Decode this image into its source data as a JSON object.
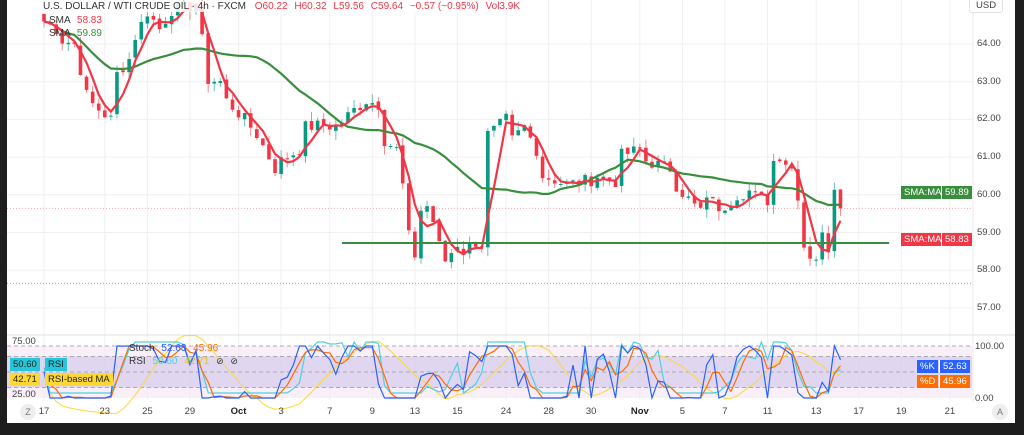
{
  "header": {
    "symbol": "U.S. DOLLAR / WTI CRUDE OIL · 4h · FXCM",
    "open": "O60.22",
    "high": "H60.32",
    "low": "L59.56",
    "close": "C59.64",
    "change": "−0.57 (−0.95%)",
    "volume": "Vol3.9K",
    "sma_fast_label": "SMA",
    "sma_fast_value": "58.83",
    "sma_slow_label": "SMA",
    "sma_slow_value": "59.89"
  },
  "price_axis": {
    "currency": "USD",
    "ticks": [
      "64.00",
      "63.00",
      "62.00",
      "61.00",
      "60.00",
      "59.00",
      "58.00",
      "57.00"
    ]
  },
  "price_tags": {
    "sma_slow": {
      "label": "SMA:MA",
      "value": "59.89"
    },
    "sma_fast": {
      "label": "SMA:MA",
      "value": "58.83"
    }
  },
  "oscillator": {
    "stoch_label": "Stoch",
    "k_value": "52.63",
    "d_value": "45.96",
    "rsi_label": "RSI",
    "rsi_value": "50.60",
    "rsi_ma_value": "42.71",
    "rsi_ma_label": "RSI-based MA",
    "left_ticks": [
      "75.00",
      "25.00"
    ],
    "right_ticks": [
      "100.00",
      "0.00"
    ],
    "k_tag": "%K",
    "d_tag": "%D"
  },
  "time_axis": {
    "labels": [
      {
        "t": "17",
        "b": 0
      },
      {
        "t": "23",
        "b": 10
      },
      {
        "t": "25",
        "b": 17
      },
      {
        "t": "29",
        "b": 24
      },
      {
        "t": "Oct",
        "b": 32,
        "bold": true
      },
      {
        "t": "3",
        "b": 39
      },
      {
        "t": "7",
        "b": 47
      },
      {
        "t": "9",
        "b": 54
      },
      {
        "t": "13",
        "b": 61
      },
      {
        "t": "15",
        "b": 68
      },
      {
        "t": "24",
        "b": 76
      },
      {
        "t": "28",
        "b": 83
      },
      {
        "t": "30",
        "b": 90
      },
      {
        "t": "Nov",
        "b": 98,
        "bold": true
      },
      {
        "t": "5",
        "b": 105
      },
      {
        "t": "7",
        "b": 112
      },
      {
        "t": "11",
        "b": 119
      },
      {
        "t": "13",
        "b": 127
      },
      {
        "t": "17",
        "b": 134
      },
      {
        "t": "19",
        "b": 141
      },
      {
        "t": "21",
        "b": 149
      }
    ],
    "reset_scale_button": "Z",
    "auto_scale_button": "A"
  },
  "colors": {
    "up": "#089981",
    "down": "#f23645",
    "sma_fast": "#f23645",
    "sma_slow": "#388e3c",
    "support": "#388e3c",
    "k": "#2962ff",
    "d": "#ff6d00",
    "rsi": "#4dd0e1",
    "rsi_ma": "#fdd835",
    "band": "#d1c4e9"
  },
  "chart_data": {
    "type": "candlestick",
    "title": "U.S. DOLLAR / WTI CRUDE OIL 4h",
    "ylim": [
      56.4,
      65.2
    ],
    "close_keypoints": [
      [
        0,
        64.6
      ],
      [
        2,
        64.4
      ],
      [
        3,
        64.1
      ],
      [
        5,
        64.0
      ],
      [
        7,
        62.65
      ],
      [
        8,
        62.4
      ],
      [
        11,
        62.0
      ],
      [
        12,
        63.2
      ],
      [
        14,
        63.6
      ],
      [
        15,
        64.2
      ],
      [
        17,
        64.85
      ],
      [
        19,
        64.4
      ],
      [
        21,
        64.9
      ],
      [
        24,
        65.0
      ],
      [
        25,
        65.1
      ],
      [
        26,
        64.1
      ],
      [
        27,
        63.05
      ],
      [
        29,
        63.0
      ],
      [
        30,
        62.5
      ],
      [
        33,
        62.0
      ],
      [
        35,
        61.6
      ],
      [
        38,
        60.7
      ],
      [
        39,
        60.9
      ],
      [
        42,
        61.2
      ],
      [
        43,
        61.8
      ],
      [
        46,
        61.85
      ],
      [
        48,
        61.8
      ],
      [
        51,
        62.25
      ],
      [
        53,
        62.5
      ],
      [
        55,
        62.4
      ],
      [
        56,
        61.45
      ],
      [
        58,
        61.2
      ],
      [
        59,
        60.25
      ],
      [
        60,
        58.9
      ],
      [
        61,
        58.4
      ],
      [
        62,
        59.6
      ],
      [
        63,
        59.7
      ],
      [
        64,
        59.3
      ],
      [
        65,
        58.65
      ],
      [
        66,
        58.25
      ],
      [
        68,
        58.7
      ],
      [
        69,
        58.5
      ],
      [
        71,
        58.75
      ],
      [
        72,
        58.7
      ],
      [
        73,
        61.6
      ],
      [
        74,
        61.7
      ],
      [
        76,
        62.0
      ],
      [
        77,
        61.45
      ],
      [
        79,
        61.8
      ],
      [
        81,
        61.2
      ],
      [
        82,
        60.5
      ],
      [
        84,
        60.4
      ],
      [
        86,
        60.25
      ],
      [
        87,
        60.3
      ],
      [
        90,
        60.4
      ],
      [
        91,
        60.5
      ],
      [
        94,
        60.35
      ],
      [
        95,
        61.05
      ],
      [
        98,
        61.2
      ],
      [
        99,
        60.9
      ],
      [
        101,
        60.8
      ],
      [
        103,
        60.7
      ],
      [
        104,
        60.25
      ],
      [
        107,
        59.7
      ],
      [
        108,
        59.6
      ],
      [
        110,
        60.0
      ],
      [
        111,
        59.45
      ],
      [
        112,
        59.7
      ],
      [
        114,
        60.0
      ],
      [
        116,
        60.1
      ],
      [
        117,
        59.95
      ],
      [
        119,
        59.85
      ],
      [
        120,
        60.9
      ],
      [
        121,
        61.05
      ],
      [
        123,
        60.7
      ],
      [
        124,
        60.0
      ],
      [
        125,
        58.65
      ],
      [
        126,
        58.4
      ],
      [
        127,
        58.35
      ],
      [
        128,
        58.9
      ],
      [
        129,
        58.6
      ],
      [
        130,
        60.25
      ],
      [
        131,
        59.64
      ]
    ],
    "last_price": 59.64,
    "support_level": 58.72,
    "support_range_bars": [
      49,
      139
    ],
    "range_low": 57.65,
    "sma_periods": [
      4,
      24
    ],
    "stoch_band": [
      20,
      80
    ]
  }
}
